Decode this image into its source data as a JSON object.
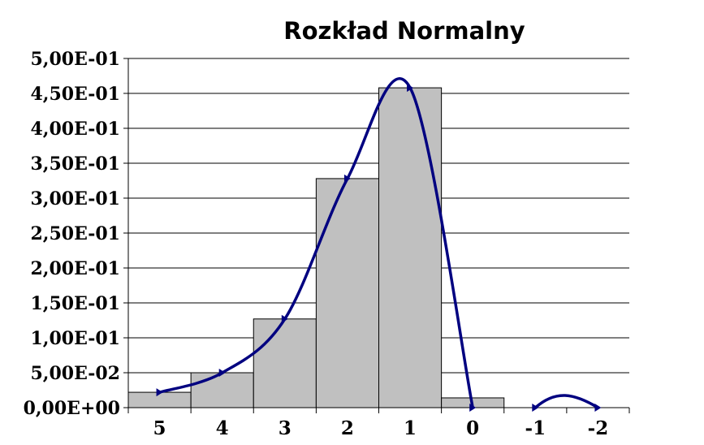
{
  "chart_data": {
    "type": "bar",
    "title": "Rozkład Normalny",
    "xlabel": "",
    "ylabel": "",
    "categories": [
      "5",
      "4",
      "3",
      "2",
      "1",
      "0",
      "-1",
      "-2"
    ],
    "ylim": [
      0,
      0.5
    ],
    "ytick_labels": [
      "0,00E+00",
      "5,00E-02",
      "1,00E-01",
      "1,50E-01",
      "2,00E-01",
      "2,50E-01",
      "3,00E-01",
      "3,50E-01",
      "4,00E-01",
      "4,50E-01",
      "5,00E-01"
    ],
    "grid": true,
    "legend": "none",
    "series": [
      {
        "type": "bar",
        "values": [
          0.022,
          0.05,
          0.127,
          0.328,
          0.458,
          0.014,
          0,
          0
        ],
        "color": "#c0c0c0"
      },
      {
        "type": "line",
        "smoothed": true,
        "values": [
          0.022,
          0.05,
          0.127,
          0.328,
          0.458,
          0.0,
          0.0,
          0.0
        ],
        "color": "#000080",
        "marker": "triangle"
      }
    ]
  }
}
